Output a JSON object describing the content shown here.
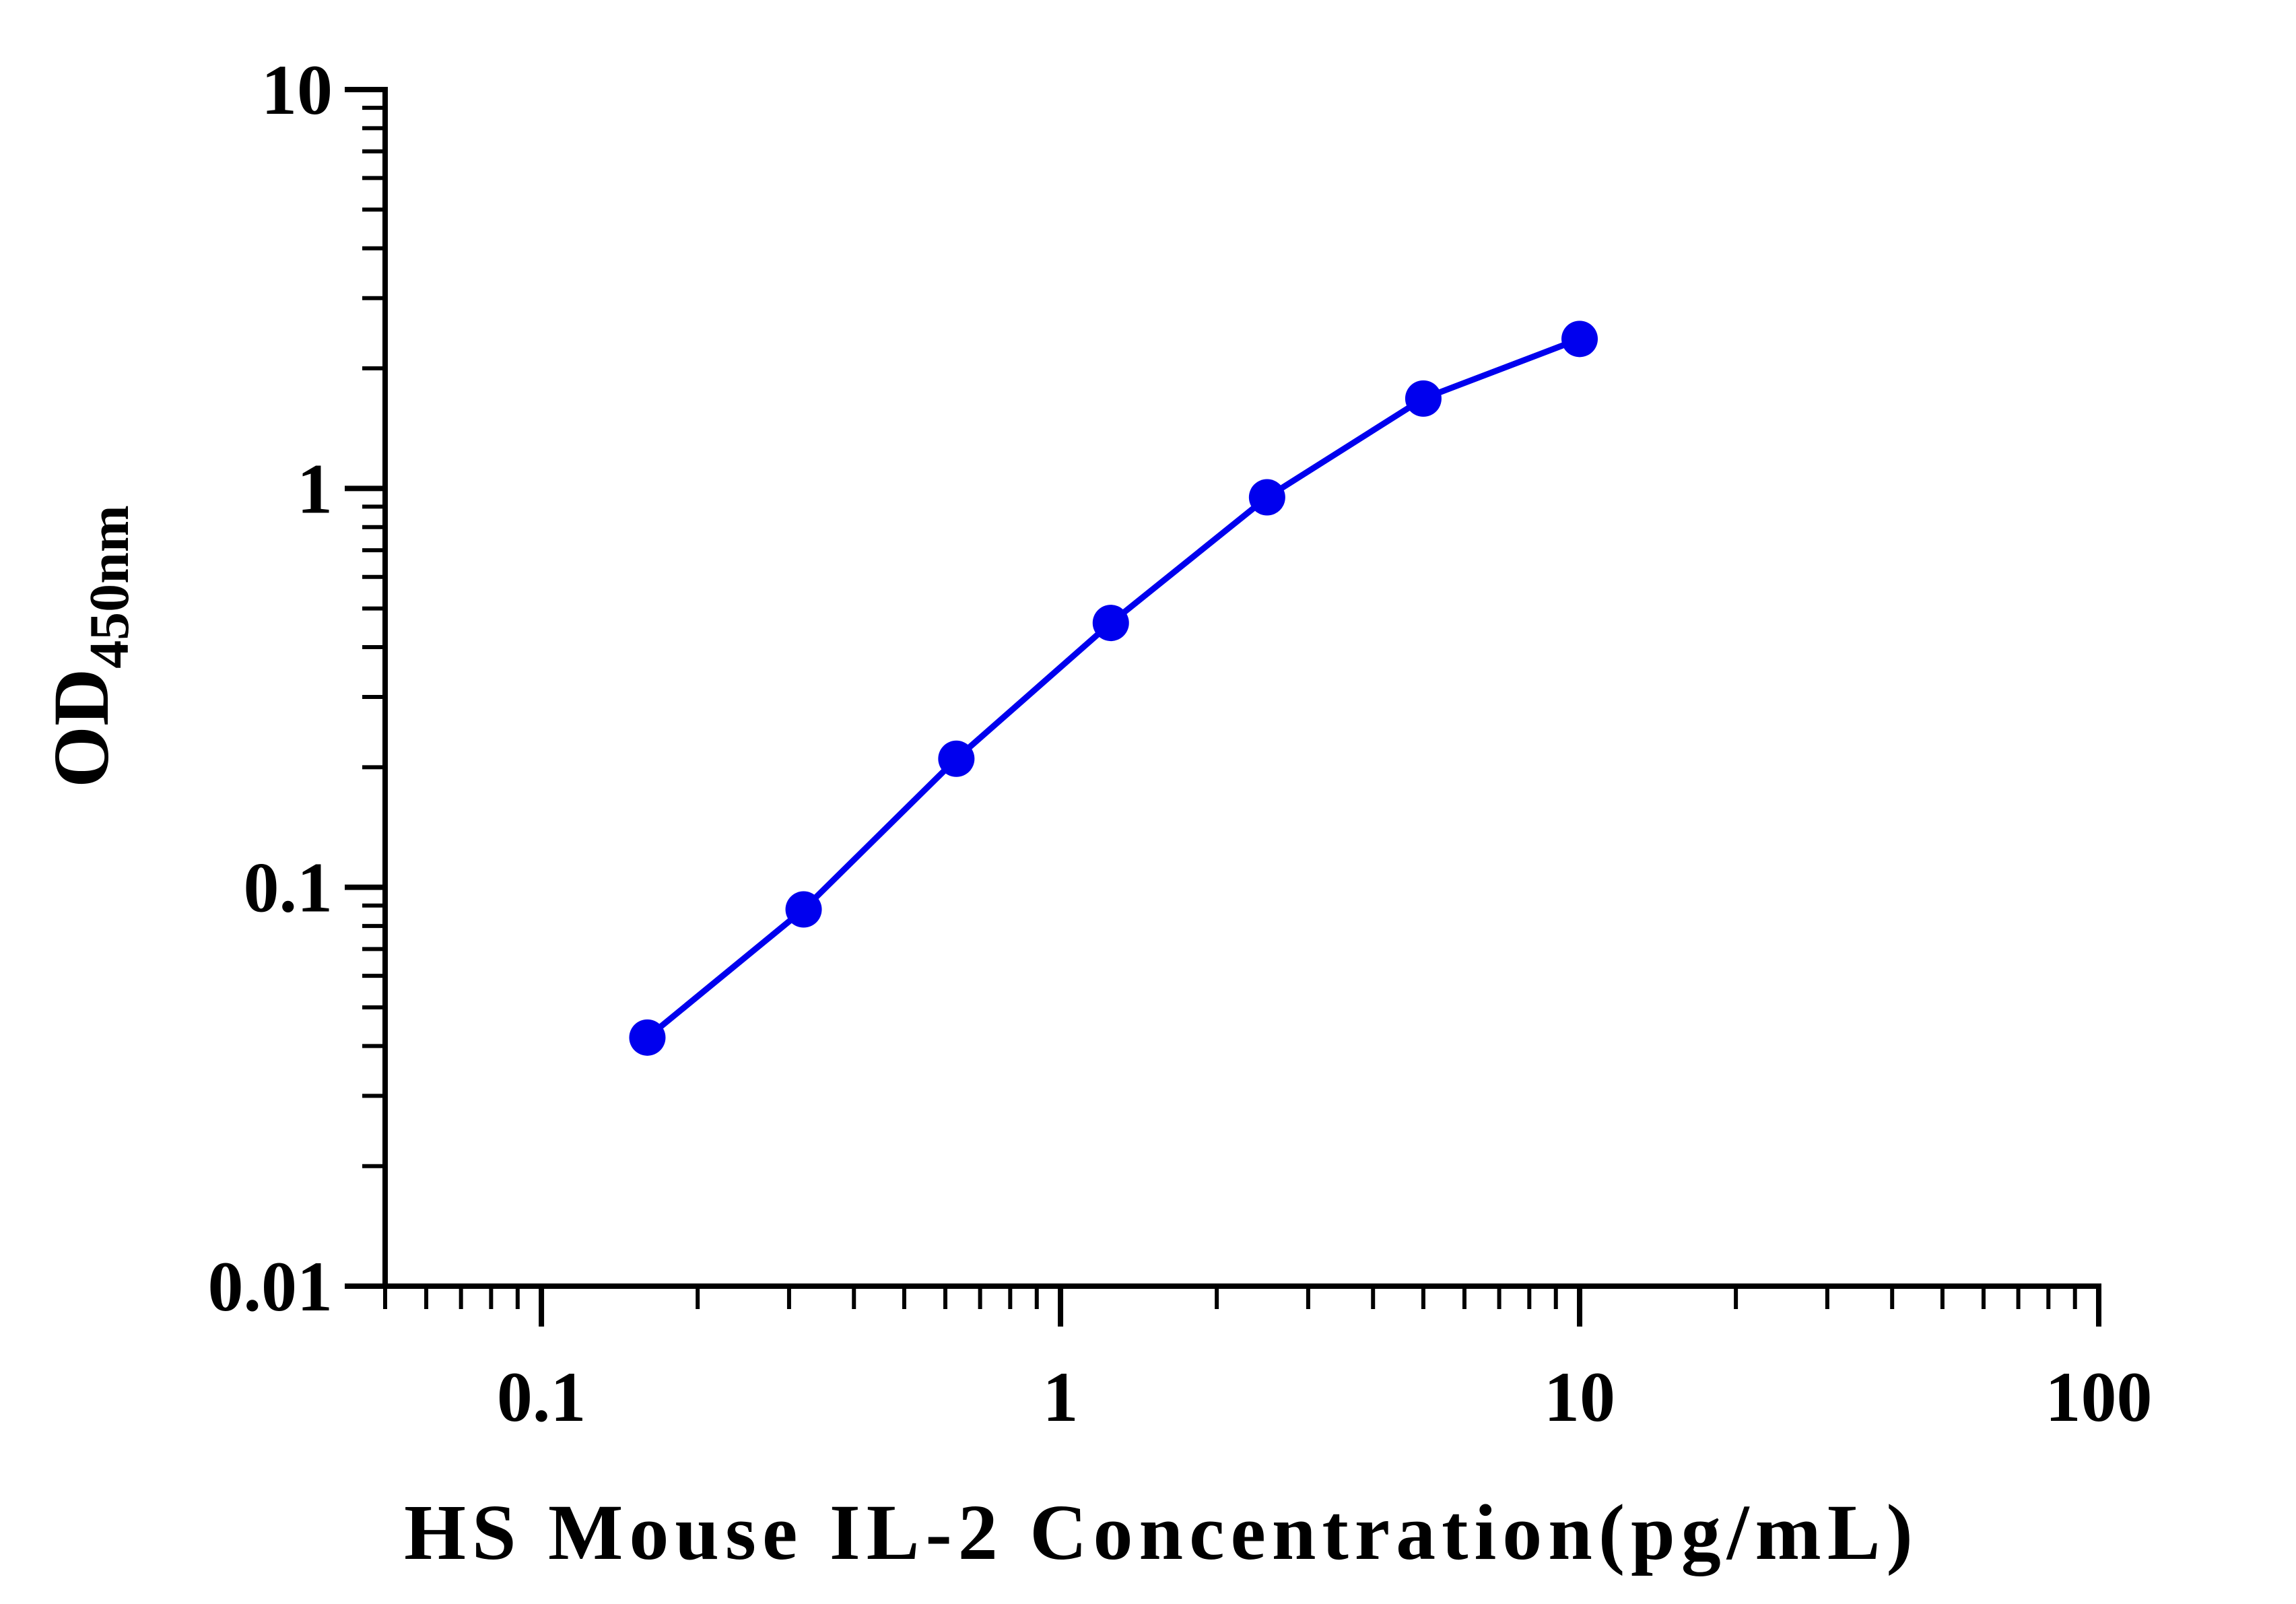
{
  "chart_data": {
    "type": "line",
    "title": "",
    "xlabel": "HS Mouse IL-2 Concentration(pg/mL)",
    "ylabel": {
      "main": "OD",
      "subscript": "450nm"
    },
    "x_scale": "log",
    "y_scale": "log",
    "xlim": [
      0.05,
      100
    ],
    "ylim": [
      0.01,
      10
    ],
    "x_ticks": [
      {
        "value": 0.1,
        "label": "0.1"
      },
      {
        "value": 1,
        "label": "1"
      },
      {
        "value": 10,
        "label": "10"
      },
      {
        "value": 100,
        "label": "100"
      }
    ],
    "y_ticks": [
      {
        "value": 0.01,
        "label": "0.01"
      },
      {
        "value": 0.1,
        "label": "0.1"
      },
      {
        "value": 1,
        "label": "1"
      },
      {
        "value": 10,
        "label": "10"
      }
    ],
    "grid": false,
    "series": [
      {
        "color": "#0000ee",
        "x": [
          0.16,
          0.32,
          0.63,
          1.25,
          2.5,
          5,
          10
        ],
        "y": [
          0.042,
          0.088,
          0.21,
          0.46,
          0.95,
          1.68,
          2.37
        ]
      }
    ]
  }
}
